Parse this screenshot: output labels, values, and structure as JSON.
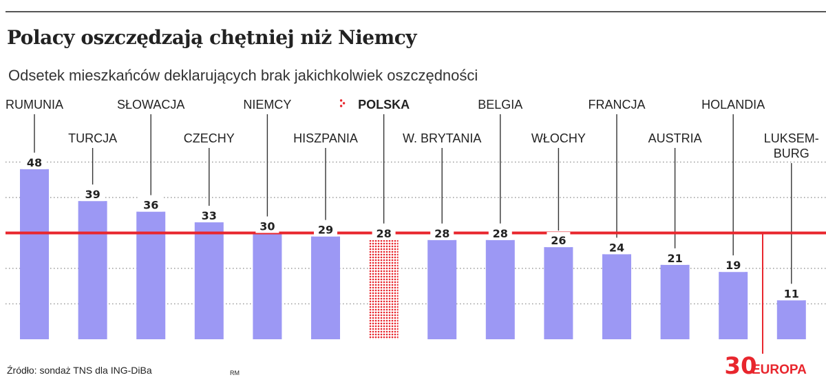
{
  "header": {
    "title": "Polacy oszczędzają chętniej niż Niemcy",
    "subtitle": "Odsetek mieszkańców deklarujących brak jakichkolwiek oszczędności"
  },
  "footer": {
    "source": "Źródło: sondaż TNS dla ING-DiBa",
    "author": "RM"
  },
  "colors": {
    "bar": "#9c98f4",
    "highlight": "#e8262d",
    "text": "#222222"
  },
  "chart_data": {
    "type": "bar",
    "title": "Polacy oszczędzają chętniej niż Niemcy",
    "subtitle": "Odsetek mieszkańców deklarujących brak jakichkolwiek oszczędności",
    "xlabel": "",
    "ylabel": "",
    "ylim": [
      0,
      60
    ],
    "grid": true,
    "categories": [
      "RUMUNIA",
      "TURCJA",
      "SŁOWACJA",
      "CZECHY",
      "NIEMCY",
      "HISZPANIA",
      "POLSKA",
      "W. BRYTANIA",
      "BELGIA",
      "WŁOCHY",
      "FRANCJA",
      "AUSTRIA",
      "HOLANDIA",
      "LUKSEM-|BURG"
    ],
    "values": [
      48,
      39,
      36,
      33,
      30,
      29,
      28,
      28,
      28,
      26,
      24,
      21,
      19,
      11
    ],
    "highlighted": "POLSKA",
    "reference": {
      "label": "EUROPA",
      "value": 30
    }
  }
}
